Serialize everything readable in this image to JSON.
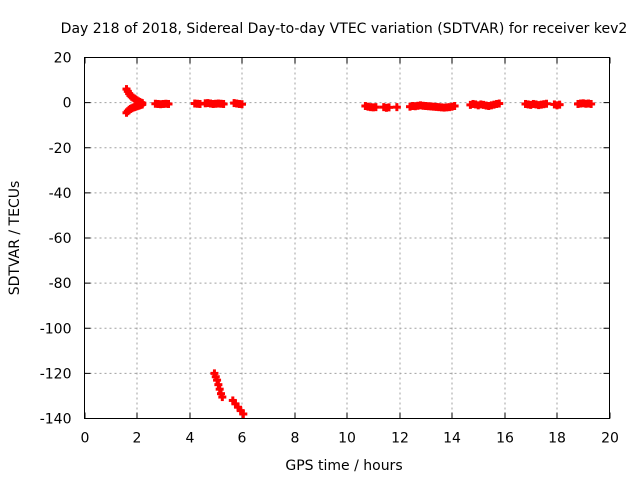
{
  "chart_data": {
    "type": "scatter",
    "title": "Day 218 of 2018, Sidereal Day-to-day VTEC variation (SDTVAR) for receiver kev2",
    "xlabel": "GPS time / hours",
    "ylabel": "SDTVAR / TECUs",
    "xlim": [
      0,
      20
    ],
    "ylim": [
      -140,
      20
    ],
    "xticks": [
      0,
      2,
      4,
      6,
      8,
      10,
      12,
      14,
      16,
      18,
      20
    ],
    "yticks": [
      20,
      0,
      -20,
      -40,
      -60,
      -80,
      -100,
      -120,
      -140
    ],
    "grid": true,
    "marker": "plus",
    "series": [
      {
        "name": "SDTVAR",
        "color": "#ff0000",
        "points": [
          [
            1.6,
            6.0
          ],
          [
            1.65,
            5.0
          ],
          [
            1.7,
            4.0
          ],
          [
            1.75,
            3.2
          ],
          [
            1.8,
            2.6
          ],
          [
            1.85,
            2.2
          ],
          [
            1.9,
            1.8
          ],
          [
            1.95,
            1.4
          ],
          [
            2.0,
            1.0
          ],
          [
            2.05,
            0.6
          ],
          [
            2.1,
            0.3
          ],
          [
            2.15,
            0.0
          ],
          [
            2.2,
            -0.2
          ],
          [
            1.6,
            -4.5
          ],
          [
            1.65,
            -3.8
          ],
          [
            1.7,
            -3.2
          ],
          [
            1.75,
            -2.8
          ],
          [
            1.8,
            -2.5
          ],
          [
            1.85,
            -2.2
          ],
          [
            1.9,
            -2.0
          ],
          [
            1.95,
            -1.8
          ],
          [
            2.0,
            -1.6
          ],
          [
            2.05,
            -1.4
          ],
          [
            2.1,
            -1.2
          ],
          [
            2.15,
            -1.0
          ],
          [
            2.2,
            -0.8
          ],
          [
            2.7,
            -0.5
          ],
          [
            2.8,
            -0.6
          ],
          [
            2.9,
            -0.7
          ],
          [
            3.0,
            -0.6
          ],
          [
            3.1,
            -0.5
          ],
          [
            3.2,
            -0.6
          ],
          [
            4.2,
            -0.4
          ],
          [
            4.3,
            -0.5
          ],
          [
            4.4,
            -0.6
          ],
          [
            4.6,
            -0.3
          ],
          [
            4.7,
            -0.2
          ],
          [
            4.8,
            -0.4
          ],
          [
            4.9,
            -0.6
          ],
          [
            5.0,
            -0.5
          ],
          [
            5.1,
            -0.4
          ],
          [
            5.2,
            -0.5
          ],
          [
            5.3,
            -0.6
          ],
          [
            5.7,
            -0.2
          ],
          [
            5.8,
            -0.4
          ],
          [
            5.9,
            -0.6
          ],
          [
            6.0,
            -0.7
          ],
          [
            4.95,
            -120.0
          ],
          [
            5.0,
            -121.5
          ],
          [
            5.05,
            -123.0
          ],
          [
            5.1,
            -125.0
          ],
          [
            5.15,
            -127.0
          ],
          [
            5.2,
            -129.0
          ],
          [
            5.25,
            -130.5
          ],
          [
            5.65,
            -132.0
          ],
          [
            5.75,
            -133.5
          ],
          [
            5.85,
            -135.0
          ],
          [
            5.95,
            -136.5
          ],
          [
            6.05,
            -138.0
          ],
          [
            10.7,
            -1.5
          ],
          [
            10.8,
            -1.8
          ],
          [
            10.9,
            -2.0
          ],
          [
            11.0,
            -2.1
          ],
          [
            11.1,
            -2.0
          ],
          [
            11.4,
            -2.0
          ],
          [
            11.5,
            -2.3
          ],
          [
            11.6,
            -2.1
          ],
          [
            11.9,
            -2.0
          ],
          [
            12.4,
            -1.8
          ],
          [
            12.5,
            -1.5
          ],
          [
            12.6,
            -1.6
          ],
          [
            12.7,
            -1.4
          ],
          [
            12.8,
            -1.2
          ],
          [
            12.9,
            -1.4
          ],
          [
            13.0,
            -1.5
          ],
          [
            13.1,
            -1.6
          ],
          [
            13.2,
            -1.7
          ],
          [
            13.3,
            -1.8
          ],
          [
            13.4,
            -1.9
          ],
          [
            13.5,
            -2.0
          ],
          [
            13.6,
            -2.1
          ],
          [
            13.7,
            -2.2
          ],
          [
            13.8,
            -2.1
          ],
          [
            13.9,
            -2.0
          ],
          [
            14.0,
            -1.8
          ],
          [
            14.1,
            -1.5
          ],
          [
            14.7,
            -1.0
          ],
          [
            14.8,
            -0.6
          ],
          [
            14.9,
            -0.8
          ],
          [
            15.0,
            -1.2
          ],
          [
            15.1,
            -0.8
          ],
          [
            15.2,
            -1.0
          ],
          [
            15.3,
            -1.3
          ],
          [
            15.4,
            -1.5
          ],
          [
            15.5,
            -1.2
          ],
          [
            15.6,
            -0.9
          ],
          [
            15.7,
            -0.6
          ],
          [
            15.8,
            -0.4
          ],
          [
            16.8,
            -0.6
          ],
          [
            16.9,
            -0.8
          ],
          [
            17.0,
            -1.0
          ],
          [
            17.1,
            -0.6
          ],
          [
            17.2,
            -0.8
          ],
          [
            17.3,
            -1.1
          ],
          [
            17.4,
            -0.9
          ],
          [
            17.5,
            -0.7
          ],
          [
            17.6,
            -0.5
          ],
          [
            17.9,
            -0.8
          ],
          [
            18.0,
            -1.2
          ],
          [
            18.1,
            -0.9
          ],
          [
            18.8,
            -0.6
          ],
          [
            18.9,
            -0.4
          ],
          [
            19.0,
            -0.3
          ],
          [
            19.1,
            -0.5
          ],
          [
            19.2,
            -0.4
          ],
          [
            19.3,
            -0.6
          ]
        ]
      }
    ]
  }
}
